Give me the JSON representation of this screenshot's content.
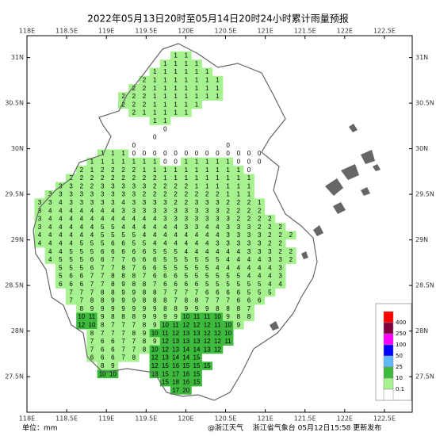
{
  "title": "2022年05月13日20时至05月14日20时24小时累计雨量预报",
  "unit": "单位：mm",
  "watermark": "@浙江天气",
  "footer": "浙江省气象台 05月12日15:58 更新发布",
  "map": {
    "xlim": [
      118,
      122.85
    ],
    "ylim": [
      27.11,
      31.24
    ],
    "xticks": [
      {
        "value": 118,
        "label": "118E"
      },
      {
        "value": 118.5,
        "label": "118.5E"
      },
      {
        "value": 119,
        "label": "119E"
      },
      {
        "value": 119.5,
        "label": "119.5E"
      },
      {
        "value": 120,
        "label": "120E"
      },
      {
        "value": 120.5,
        "label": "120.5E"
      },
      {
        "value": 121,
        "label": "121E"
      },
      {
        "value": 121.5,
        "label": "121.5E"
      },
      {
        "value": 122,
        "label": "122E"
      },
      {
        "value": 122.5,
        "label": "122.5E"
      }
    ],
    "yticks": [
      {
        "value": 27.5,
        "label": "27.5N"
      },
      {
        "value": 28,
        "label": "28N"
      },
      {
        "value": 28.5,
        "label": "28.5N"
      },
      {
        "value": 29,
        "label": "29N"
      },
      {
        "value": 29.5,
        "label": "29.5N"
      },
      {
        "value": 30,
        "label": "30N"
      },
      {
        "value": 30.5,
        "label": "30.5N"
      },
      {
        "value": 31,
        "label": "31N"
      }
    ],
    "grid": [
      [
        null,
        null,
        null,
        null,
        null,
        null,
        null,
        null,
        null,
        null,
        null,
        null,
        null,
        1,
        1
      ],
      [
        null,
        null,
        null,
        null,
        null,
        null,
        null,
        null,
        null,
        null,
        null,
        null,
        1,
        1,
        1,
        1
      ],
      [
        null,
        null,
        null,
        null,
        null,
        null,
        null,
        null,
        null,
        null,
        null,
        1,
        1,
        1,
        1,
        1,
        1
      ],
      [
        null,
        null,
        null,
        null,
        null,
        null,
        null,
        null,
        null,
        null,
        2,
        1,
        1,
        1,
        1,
        1,
        1,
        1
      ],
      [
        null,
        null,
        null,
        null,
        null,
        null,
        null,
        null,
        null,
        2,
        2,
        1,
        1,
        1,
        1,
        1,
        1,
        1
      ],
      [
        null,
        null,
        null,
        null,
        null,
        null,
        null,
        null,
        2,
        2,
        2,
        1,
        1,
        1,
        1,
        1,
        1,
        1
      ],
      [
        null,
        null,
        null,
        null,
        null,
        null,
        null,
        null,
        2,
        2,
        2,
        1,
        1,
        1,
        1,
        1
      ],
      [
        null,
        null,
        null,
        null,
        null,
        null,
        null,
        null,
        null,
        2,
        1,
        1,
        1,
        1,
        1
      ],
      [
        null,
        null,
        null,
        null,
        null,
        null,
        null,
        null,
        null,
        null,
        null,
        1,
        1
      ],
      [
        null,
        null,
        null,
        null,
        null,
        null,
        null,
        null,
        null,
        null,
        null,
        null,
        0
      ],
      [
        null,
        null,
        null,
        null,
        null,
        null,
        null,
        null,
        null,
        null,
        null,
        0
      ],
      [
        null,
        null,
        null,
        null,
        null,
        null,
        null,
        null,
        null,
        0,
        null,
        null,
        null,
        null,
        null,
        null,
        null,
        null,
        0
      ],
      [
        null,
        null,
        null,
        null,
        null,
        null,
        1,
        1,
        1,
        0,
        0,
        0,
        0,
        0,
        0,
        0,
        0,
        0,
        0,
        0,
        0,
        0
      ],
      [
        null,
        null,
        null,
        null,
        null,
        1,
        1,
        1,
        1,
        1,
        1,
        1,
        0,
        0,
        1,
        1,
        1,
        1,
        1,
        0,
        0,
        0
      ],
      [
        null,
        null,
        null,
        null,
        2,
        1,
        2,
        2,
        2,
        2,
        1,
        1,
        1,
        1,
        1,
        1,
        1,
        1,
        1,
        1,
        0
      ],
      [
        null,
        null,
        null,
        2,
        2,
        2,
        2,
        2,
        2,
        2,
        2,
        2,
        1,
        1,
        1,
        1,
        1,
        1,
        1,
        1,
        1
      ],
      [
        null,
        null,
        3,
        3,
        2,
        2,
        3,
        3,
        3,
        3,
        3,
        2,
        2,
        2,
        2,
        1,
        1,
        1,
        1,
        1,
        1
      ],
      [
        null,
        3,
        3,
        3,
        3,
        3,
        3,
        3,
        3,
        3,
        2,
        2,
        2,
        2,
        2,
        2,
        2,
        2,
        1,
        1,
        1
      ],
      [
        3,
        3,
        4,
        3,
        3,
        3,
        3,
        3,
        4,
        3,
        3,
        3,
        3,
        2,
        2,
        3,
        3,
        3,
        2,
        2,
        2,
        1
      ],
      [
        3,
        4,
        4,
        4,
        4,
        4,
        4,
        4,
        3,
        3,
        3,
        3,
        3,
        3,
        3,
        3,
        3,
        3,
        2,
        2,
        2,
        2
      ],
      [
        3,
        4,
        4,
        4,
        4,
        4,
        4,
        4,
        4,
        4,
        4,
        4,
        3,
        3,
        3,
        3,
        3,
        3,
        3,
        2,
        2,
        2,
        2
      ],
      [
        3,
        4,
        4,
        4,
        4,
        4,
        5,
        5,
        4,
        4,
        4,
        4,
        4,
        4,
        3,
        3,
        4,
        4,
        3,
        3,
        3,
        2,
        2,
        2
      ],
      [
        4,
        4,
        4,
        4,
        4,
        4,
        5,
        5,
        5,
        5,
        4,
        4,
        4,
        4,
        4,
        4,
        4,
        4,
        3,
        3,
        3,
        3,
        2,
        2,
        2
      ],
      [
        4,
        4,
        4,
        4,
        5,
        5,
        5,
        6,
        6,
        5,
        5,
        4,
        4,
        4,
        4,
        4,
        4,
        3,
        3,
        3,
        3,
        3,
        2,
        2
      ],
      [
        null,
        4,
        4,
        5,
        5,
        5,
        6,
        6,
        6,
        6,
        6,
        5,
        5,
        5,
        4,
        4,
        4,
        4,
        4,
        4,
        3,
        3,
        3,
        2,
        2
      ],
      [
        null,
        4,
        5,
        5,
        5,
        6,
        6,
        7,
        7,
        6,
        6,
        6,
        5,
        5,
        5,
        5,
        5,
        5,
        4,
        4,
        4,
        4,
        3,
        3,
        2
      ],
      [
        null,
        null,
        5,
        5,
        5,
        6,
        7,
        7,
        8,
        7,
        6,
        6,
        5,
        5,
        5,
        5,
        5,
        4,
        4,
        4,
        4,
        4,
        4,
        3
      ],
      [
        null,
        null,
        5,
        6,
        6,
        7,
        7,
        8,
        8,
        8,
        7,
        6,
        6,
        6,
        5,
        5,
        5,
        5,
        5,
        5,
        4,
        4,
        4,
        3
      ],
      [
        null,
        null,
        6,
        6,
        6,
        7,
        7,
        8,
        9,
        8,
        8,
        7,
        6,
        6,
        6,
        6,
        5,
        5,
        5,
        5,
        5,
        5,
        4,
        4
      ],
      [
        null,
        null,
        null,
        7,
        7,
        7,
        8,
        8,
        9,
        9,
        8,
        8,
        7,
        7,
        7,
        7,
        6,
        6,
        6,
        6,
        5,
        5,
        5
      ],
      [
        null,
        null,
        null,
        7,
        7,
        8,
        8,
        9,
        9,
        9,
        8,
        8,
        8,
        7,
        8,
        8,
        7,
        7,
        7,
        6,
        6,
        6
      ],
      [
        null,
        null,
        null,
        null,
        8,
        9,
        9,
        9,
        9,
        9,
        9,
        9,
        8,
        8,
        9,
        9,
        9,
        8,
        8,
        8,
        7
      ],
      [
        null,
        null,
        null,
        null,
        10,
        11,
        9,
        8,
        8,
        8,
        9,
        9,
        9,
        9,
        10,
        11,
        11,
        10,
        9,
        8,
        8
      ],
      [
        null,
        null,
        null,
        null,
        12,
        10,
        8,
        7,
        7,
        7,
        8,
        9,
        10,
        11,
        12,
        12,
        12,
        11,
        10,
        9
      ],
      [
        null,
        null,
        null,
        null,
        null,
        8,
        7,
        7,
        7,
        8,
        9,
        10,
        11,
        12,
        13,
        13,
        12,
        12,
        10
      ],
      [
        null,
        null,
        null,
        null,
        null,
        7,
        6,
        6,
        7,
        7,
        8,
        9,
        12,
        13,
        13,
        13,
        12,
        12,
        11
      ],
      [
        null,
        null,
        null,
        null,
        null,
        7,
        6,
        6,
        7,
        7,
        8,
        10,
        12,
        13,
        14,
        14,
        13,
        12
      ],
      [
        null,
        null,
        null,
        null,
        null,
        6,
        6,
        6,
        7,
        8,
        null,
        12,
        13,
        14,
        14,
        15
      ],
      [
        null,
        null,
        null,
        null,
        null,
        null,
        8,
        9,
        null,
        null,
        null,
        12,
        15,
        16,
        15,
        15,
        15
      ],
      [
        null,
        null,
        null,
        null,
        null,
        null,
        10,
        10,
        null,
        null,
        null,
        13,
        15,
        17,
        16,
        15
      ],
      [
        null,
        null,
        null,
        null,
        null,
        null,
        null,
        null,
        null,
        null,
        null,
        null,
        15,
        18,
        16,
        15
      ],
      [
        null,
        null,
        null,
        null,
        null,
        null,
        null,
        null,
        null,
        null,
        null,
        null,
        null,
        17,
        20
      ]
    ]
  },
  "legend": {
    "levels": [
      0.1,
      10,
      25,
      50,
      100,
      250,
      400
    ],
    "colors": [
      "#ffffff",
      "#a6f28f",
      "#3dba3d",
      "#61b8ff",
      "#0000fe",
      "#fa00fa",
      "#800040",
      "#fe0000"
    ]
  }
}
